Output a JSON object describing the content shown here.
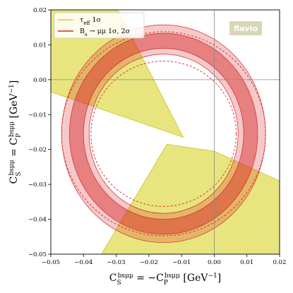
{
  "chart_data": {
    "type": "contour",
    "xlabel": "C_S^{bsμμ} = −C_P^{bsμμ} [GeV⁻¹]",
    "ylabel": "C_S^{bsμμ} = C_P^{bsμμ} [GeV⁻¹]",
    "xlim": [
      -0.05,
      0.02
    ],
    "ylim": [
      -0.05,
      0.02
    ],
    "x_ticks": [
      -0.05,
      -0.04,
      -0.03,
      -0.02,
      -0.01,
      0.0,
      0.01,
      0.02
    ],
    "y_ticks": [
      -0.05,
      -0.04,
      -0.03,
      -0.02,
      -0.01,
      0.0,
      0.01,
      0.02
    ],
    "x_tick_labels": [
      "−0.05",
      "−0.04",
      "−0.03",
      "−0.02",
      "−0.01",
      "0.00",
      "0.01",
      "0.02"
    ],
    "y_tick_labels": [
      "−0.05",
      "−0.04",
      "−0.03",
      "−0.02",
      "−0.01",
      "0.00",
      "0.01",
      "0.02"
    ],
    "grid": "x=0 and y=0 reference lines",
    "legend_position": "top-left",
    "watermark": "flavio",
    "series": [
      {
        "name": "τ_eff 1σ",
        "color": "#d8d428",
        "kind": "band",
        "description_points": [
          {
            "x": -0.05,
            "y_lower": -0.0035,
            "y_upper": 0.02
          },
          {
            "x": -0.0295,
            "y_lower": 0.02,
            "y_upper": 0.02
          },
          {
            "x": 0.0,
            "y_lower": -0.0205,
            "y_upper": -0.05
          }
        ]
      },
      {
        "name": "B_s → μμ 1σ, 2σ",
        "color": "#d62728",
        "kind": "ring",
        "center": [
          -0.0155,
          -0.0155
        ],
        "ring_1sigma": [
          0.0245,
          0.0288
        ],
        "ring_2sigma": [
          0.0228,
          0.0312
        ],
        "dashed_circles": [
          0.0215,
          0.0302
        ]
      }
    ]
  },
  "legend": {
    "entry1_main": "τ",
    "entry1_sub": "eff",
    "entry1_rest": " 1σ",
    "entry2_main": "B",
    "entry2_sub": "s",
    "entry2_rest": " → μμ 1σ, 2σ"
  }
}
